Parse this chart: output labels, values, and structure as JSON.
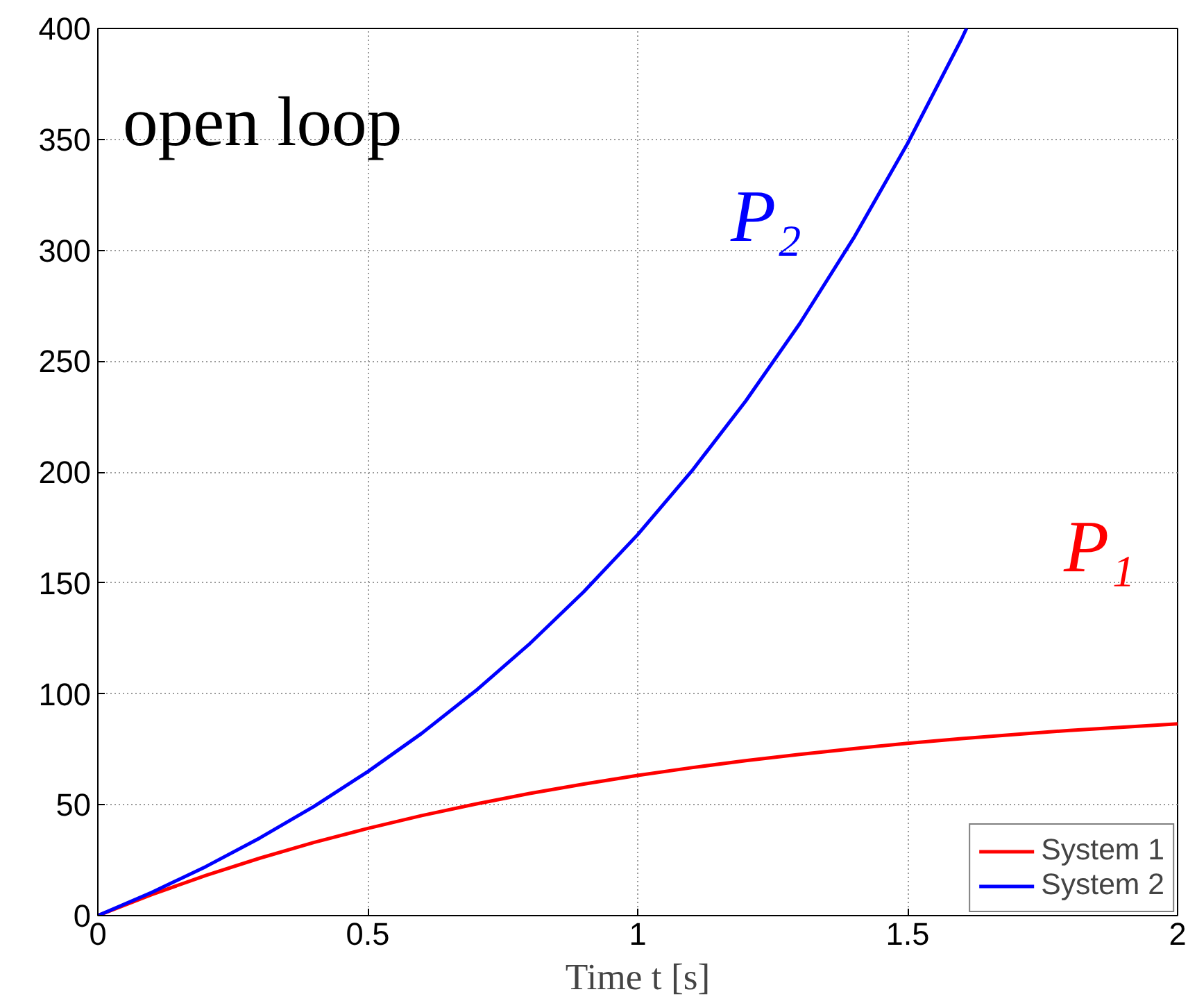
{
  "chart_data": {
    "type": "line",
    "xlabel": "Time t [s]",
    "xlim": [
      0,
      2
    ],
    "ylim": [
      0,
      400
    ],
    "xticks": [
      0,
      0.5,
      1,
      1.5,
      2
    ],
    "yticks": [
      0,
      50,
      100,
      150,
      200,
      250,
      300,
      350,
      400
    ],
    "grid": true,
    "legend": "bottom right",
    "marker": "none",
    "line_style": "solid",
    "annotations": [
      "open loop",
      "P₁",
      "P₂"
    ],
    "series": [
      {
        "name": "System 1",
        "color": "#ff0000",
        "x": [
          0,
          0.1,
          0.2,
          0.3,
          0.4,
          0.5,
          0.6,
          0.7,
          0.8,
          0.9,
          1,
          1.1,
          1.2,
          1.3,
          1.4,
          1.5,
          1.6,
          1.7,
          1.8,
          1.9,
          2
        ],
        "values": [
          0,
          9.5,
          18.1,
          25.9,
          33.0,
          39.3,
          45.1,
          50.3,
          55.1,
          59.3,
          63.2,
          66.7,
          69.9,
          72.7,
          75.3,
          77.7,
          79.8,
          81.7,
          83.5,
          85.0,
          86.5
        ]
      },
      {
        "name": "System 2",
        "color": "#0000ff",
        "x": [
          0,
          0.1,
          0.2,
          0.3,
          0.4,
          0.5,
          0.6,
          0.7,
          0.8,
          0.9,
          1,
          1.1,
          1.2,
          1.3,
          1.4,
          1.5,
          1.6,
          1.609
        ],
        "values": [
          0,
          10.5,
          22.1,
          35.0,
          49.2,
          64.9,
          82.2,
          101.4,
          122.6,
          146.0,
          171.8,
          200.4,
          232.0,
          266.9,
          305.5,
          348.2,
          395.3,
          400
        ]
      }
    ]
  }
}
